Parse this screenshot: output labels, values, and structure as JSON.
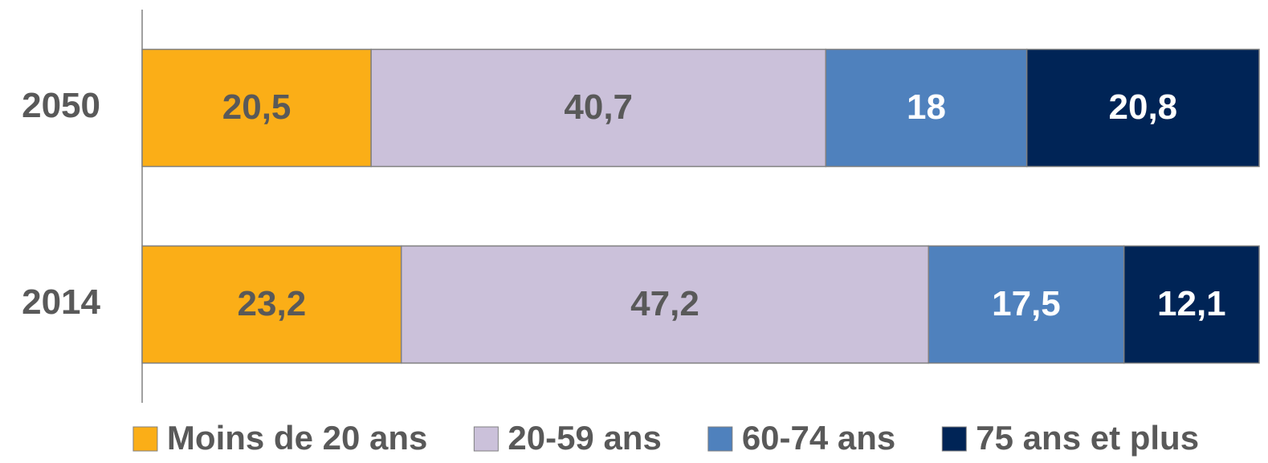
{
  "chart_data": {
    "type": "stacked-bar-horizontal",
    "categories": [
      "2050",
      "2014"
    ],
    "xlim": [
      0,
      100
    ],
    "series": [
      {
        "name": "Moins de 20 ans",
        "color": "#FBAE17",
        "label_color": "#595959",
        "values": [
          20.5,
          23.2
        ],
        "value_labels": [
          "20,5",
          "23,2"
        ]
      },
      {
        "name": "20-59 ans",
        "color": "#CBC1DA",
        "label_color": "#595959",
        "values": [
          40.7,
          47.2
        ],
        "value_labels": [
          "40,7",
          "47,2"
        ]
      },
      {
        "name": "60-74 ans",
        "color": "#4F81BD",
        "label_color": "#ffffff",
        "values": [
          18,
          17.5
        ],
        "value_labels": [
          "18",
          "17,5"
        ]
      },
      {
        "name": "75 ans et plus",
        "color": "#002456",
        "label_color": "#ffffff",
        "values": [
          20.8,
          12.1
        ],
        "value_labels": [
          "20,8",
          "12,1"
        ]
      }
    ],
    "legend": "bottom"
  }
}
